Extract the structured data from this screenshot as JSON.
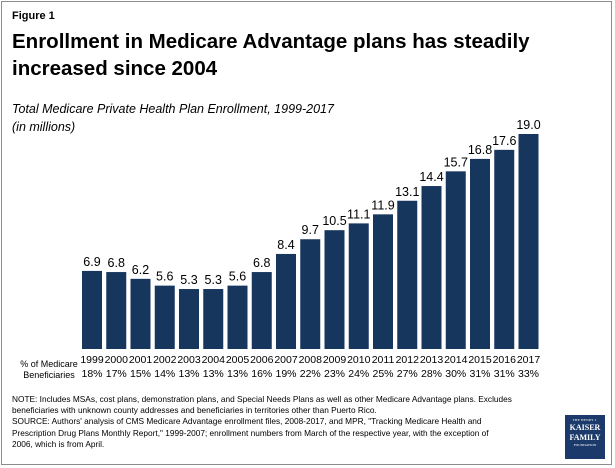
{
  "figure_label": "Figure 1",
  "title": "Enrollment in Medicare Advantage plans has steadily increased since 2004",
  "subtitle_line1": "Total Medicare Private Health Plan Enrollment, 1999-2017",
  "subtitle_line2": "(in millions)",
  "pct_row_label_line1": "% of Medicare",
  "pct_row_label_line2": "Beneficiaries",
  "note_line1": "NOTE: Includes MSAs, cost plans, demonstration plans, and Special Needs Plans as well as other Medicare Advantage plans.  Excludes",
  "note_line2": "beneficiaries with unknown county addresses and beneficiaries in territories other than Puerto Rico.",
  "note_line3": "SOURCE: Authors' analysis of CMS Medicare Advantage enrollment files, 2008-2017, and MPR, \"Tracking Medicare Health and",
  "note_line4": "Prescription Drug Plans Monthly Report,\" 1999-2007; enrollment numbers from March of the respective year, with the exception of",
  "note_line5": "2006, which is from April.",
  "logo": {
    "line1": "THE HENRY J.",
    "line2": "KAISER",
    "line3": "FAMILY",
    "line4": "FOUNDATION",
    "color": "#1b3a6b"
  },
  "chart_data": {
    "type": "bar",
    "title": "Enrollment in Medicare Advantage plans has steadily increased since 2004",
    "subtitle": "Total Medicare Private Health Plan Enrollment, 1999-2017 (in millions)",
    "xlabel": "",
    "ylabel": "",
    "ylim": [
      0,
      19
    ],
    "grid": false,
    "bar_color": "#17365d",
    "categories": [
      "1999",
      "2000",
      "2001",
      "2002",
      "2003",
      "2004",
      "2005",
      "2006",
      "2007",
      "2008",
      "2009",
      "2010",
      "2011",
      "2012",
      "2013",
      "2014",
      "2015",
      "2016",
      "2017"
    ],
    "values": [
      6.9,
      6.8,
      6.2,
      5.6,
      5.3,
      5.3,
      5.6,
      6.8,
      8.4,
      9.7,
      10.5,
      11.1,
      11.9,
      13.1,
      14.4,
      15.7,
      16.8,
      17.6,
      19.0
    ],
    "value_labels": [
      "6.9",
      "6.8",
      "6.2",
      "5.6",
      "5.3",
      "5.3",
      "5.6",
      "6.8",
      "8.4",
      "9.7",
      "10.5",
      "11.1",
      "11.9",
      "13.1",
      "14.4",
      "15.7",
      "16.8",
      "17.6",
      "19.0"
    ],
    "pct_of_beneficiaries": [
      "18%",
      "17%",
      "15%",
      "14%",
      "13%",
      "13%",
      "13%",
      "16%",
      "19%",
      "22%",
      "23%",
      "24%",
      "25%",
      "27%",
      "28%",
      "30%",
      "31%",
      "31%",
      "33%"
    ]
  }
}
